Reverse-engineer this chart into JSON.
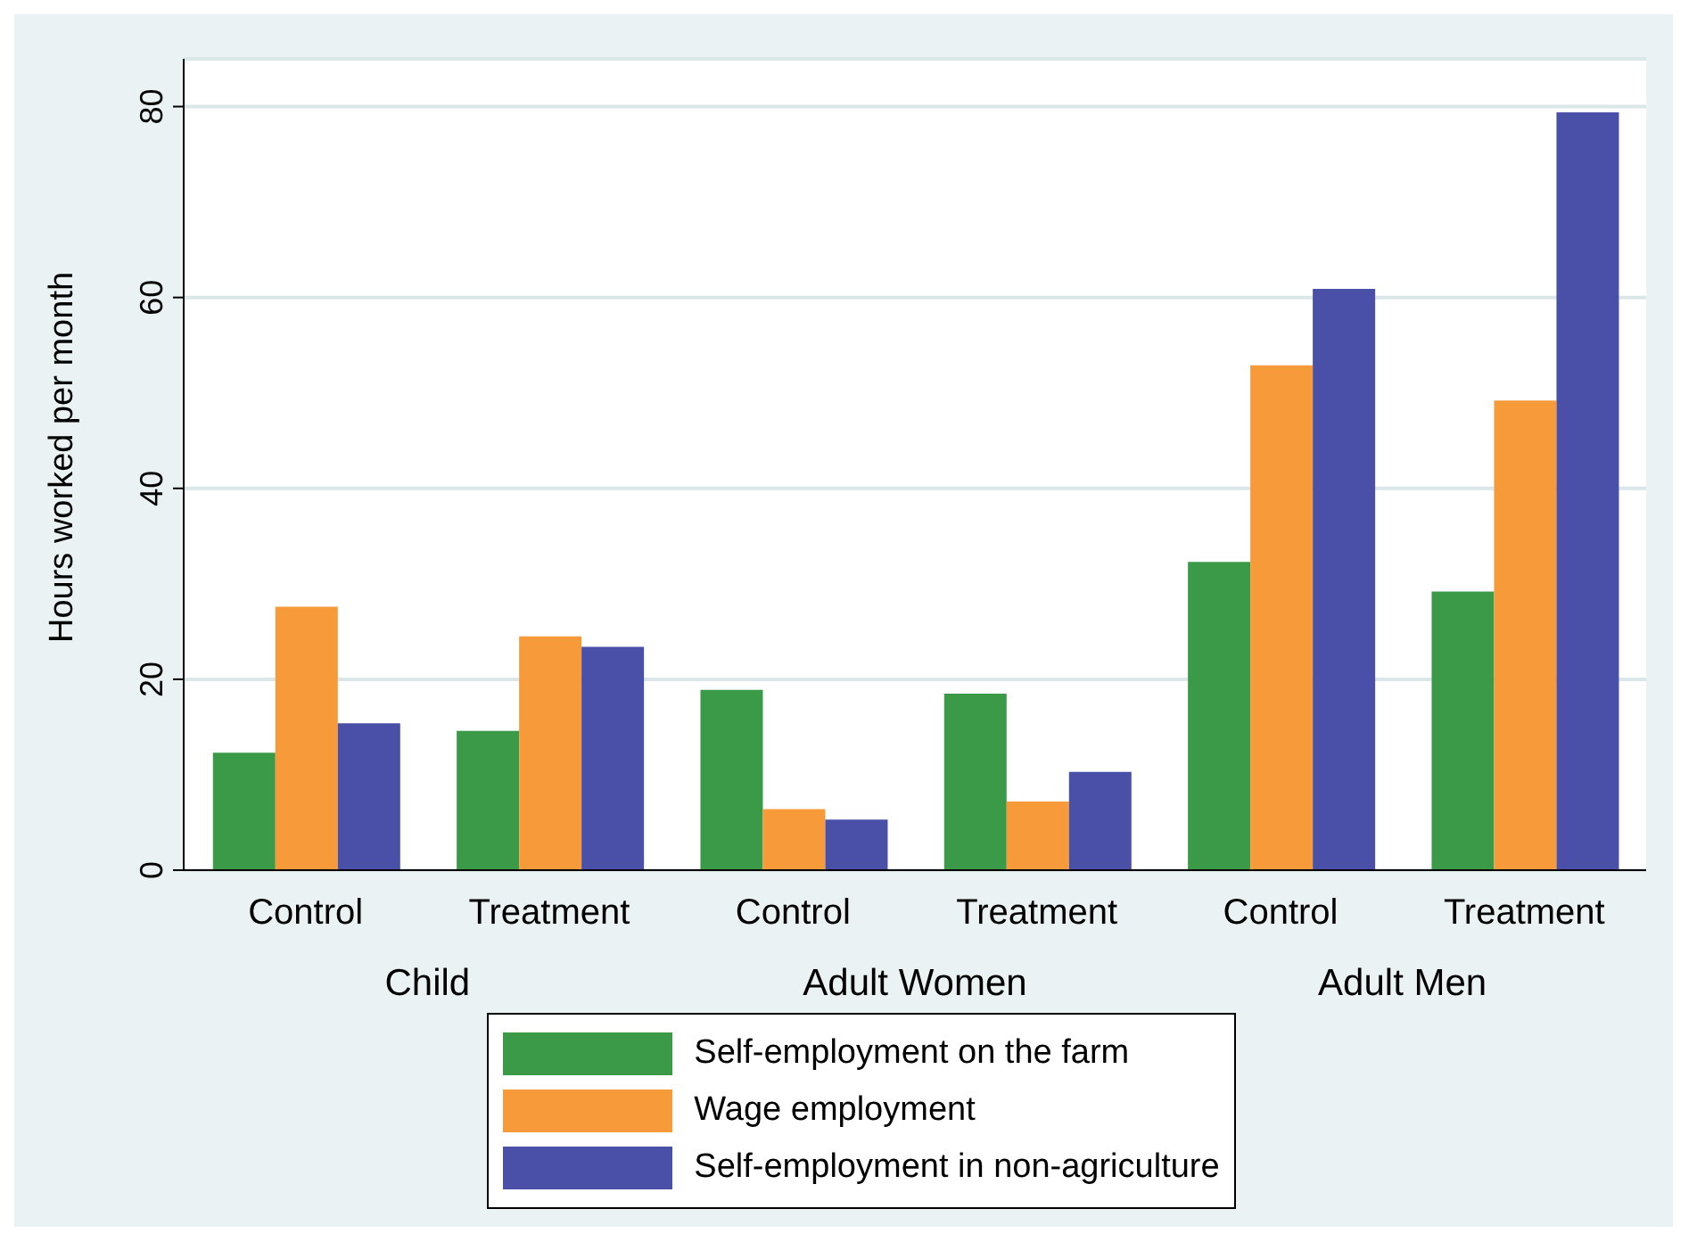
{
  "chart_data": {
    "type": "bar",
    "ylabel": "Hours worked per month",
    "categories": [
      "Control",
      "Treatment",
      "Control",
      "Treatment",
      "Control",
      "Treatment"
    ],
    "series": [
      {
        "name": "Self-employment on the farm",
        "color": "#3a9a48",
        "values": [
          12.3,
          14.6,
          18.9,
          18.5,
          32.3,
          29.2
        ]
      },
      {
        "name": "Wage employment",
        "color": "#f79a3a",
        "values": [
          27.6,
          24.5,
          6.4,
          7.2,
          52.9,
          49.2
        ]
      },
      {
        "name": "Self-employment in non-agriculture",
        "color": "#4a4fa8",
        "values": [
          15.4,
          23.4,
          5.3,
          10.3,
          60.9,
          79.4
        ]
      }
    ],
    "annotations": [
      "Child",
      "Adult Women",
      "Adult Men"
    ],
    "ylim": [
      0,
      85
    ],
    "yticks": [
      0,
      20,
      40,
      60,
      80
    ],
    "grid": "y",
    "legend": "bottom"
  }
}
